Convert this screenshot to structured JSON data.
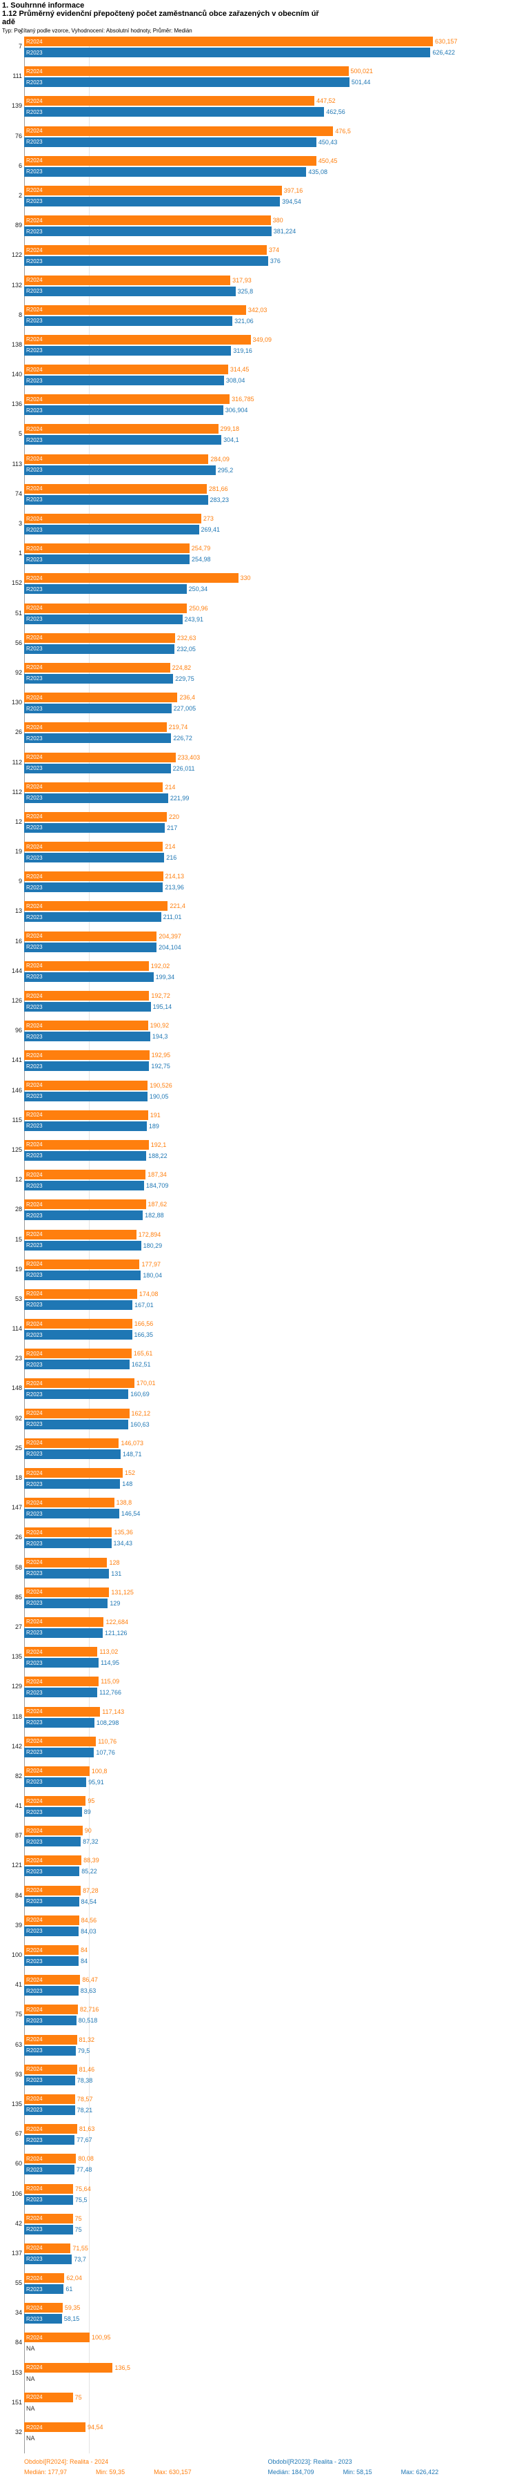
{
  "header": {
    "section_title": "1. Souhrnné informace",
    "subtitle_line1": "1.12 Průměrný evidenční přepočtený počet zaměstnanců obce zařazených v obecním úř",
    "subtitle_line2": "adě",
    "meta": "Typ: Počítaný podle vzorce, Vyhodnocení: Absolutní hodnoty, Průměr: Medián"
  },
  "colors": {
    "r2024": "#ff7f0e",
    "r2023": "#1f77b4"
  },
  "series_labels": {
    "r2024": "R2024",
    "r2023": "R2023"
  },
  "axis": {
    "zero_label": "0",
    "x_min": 0
  },
  "chart_data": {
    "type": "bar",
    "orientation": "horizontal",
    "title": "1.12 Průměrný evidenční přepočtený počet zaměstnanců obce zařazených v obecním úřadě",
    "legend_position": "bottom",
    "series": [
      {
        "key": "r2024",
        "name": "Období[R2024]: Realita - 2024",
        "color": "#ff7f0e"
      },
      {
        "key": "r2023",
        "name": "Období[R2023]: Realita - 2023",
        "color": "#1f77b4"
      }
    ],
    "x_range": [
      0,
      660
    ],
    "rows": [
      {
        "label": "7",
        "v24": 630.157,
        "t24": "630,157",
        "v23": 626.422,
        "t23": "626,422"
      },
      {
        "label": "111",
        "v24": 500.021,
        "t24": "500,021",
        "v23": 501.44,
        "t23": "501,44"
      },
      {
        "label": "139",
        "v24": 447.52,
        "t24": "447,52",
        "v23": 462.56,
        "t23": "462,56"
      },
      {
        "label": "76",
        "v24": 476.5,
        "t24": "476,5",
        "v23": 450.43,
        "t23": "450,43"
      },
      {
        "label": "6",
        "v24": 450.45,
        "t24": "450,45",
        "v23": 435.08,
        "t23": "435,08"
      },
      {
        "label": "2",
        "v24": 397.16,
        "t24": "397,16",
        "v23": 394.54,
        "t23": "394,54"
      },
      {
        "label": "89",
        "v24": 380,
        "t24": "380",
        "v23": 381.224,
        "t23": "381,224"
      },
      {
        "label": "122",
        "v24": 374,
        "t24": "374",
        "v23": 376,
        "t23": "376"
      },
      {
        "label": "132",
        "v24": 317.93,
        "t24": "317,93",
        "v23": 325.8,
        "t23": "325,8"
      },
      {
        "label": "8",
        "v24": 342.03,
        "t24": "342,03",
        "v23": 321.06,
        "t23": "321,06"
      },
      {
        "label": "138",
        "v24": 349.09,
        "t24": "349,09",
        "v23": 319.16,
        "t23": "319,16"
      },
      {
        "label": "140",
        "v24": 314.45,
        "t24": "314,45",
        "v23": 308.04,
        "t23": "308,04"
      },
      {
        "label": "136",
        "v24": 316.785,
        "t24": "316,785",
        "v23": 306.904,
        "t23": "306,904"
      },
      {
        "label": "5",
        "v24": 299.18,
        "t24": "299,18",
        "v23": 304.1,
        "t23": "304,1"
      },
      {
        "label": "113",
        "v24": 284.09,
        "t24": "284,09",
        "v23": 295.2,
        "t23": "295,2"
      },
      {
        "label": "74",
        "v24": 281.66,
        "t24": "281,66",
        "v23": 283.23,
        "t23": "283,23"
      },
      {
        "label": "3",
        "v24": 273,
        "t24": "273",
        "v23": 269.41,
        "t23": "269,41"
      },
      {
        "label": "1",
        "v24": 254.79,
        "t24": "254,79",
        "v23": 254.98,
        "t23": "254,98"
      },
      {
        "label": "152",
        "v24": 330,
        "t24": "330",
        "v23": 250.34,
        "t23": "250,34"
      },
      {
        "label": "51",
        "v24": 250.96,
        "t24": "250,96",
        "v23": 243.91,
        "t23": "243,91"
      },
      {
        "label": "56",
        "v24": 232.63,
        "t24": "232,63",
        "v23": 232.05,
        "t23": "232,05"
      },
      {
        "label": "92",
        "v24": 224.82,
        "t24": "224,82",
        "v23": 229.75,
        "t23": "229,75"
      },
      {
        "label": "130",
        "v24": 236.4,
        "t24": "236,4",
        "v23": 227.005,
        "t23": "227,005"
      },
      {
        "label": "26",
        "v24": 219.74,
        "t24": "219,74",
        "v23": 226.72,
        "t23": "226,72"
      },
      {
        "label": "112",
        "v24": 233.403,
        "t24": "233,403",
        "v23": 226.011,
        "t23": "226,011"
      },
      {
        "label": "112",
        "v24": 214,
        "t24": "214",
        "v23": 221.99,
        "t23": "221,99"
      },
      {
        "label": "12",
        "v24": 220,
        "t24": "220",
        "v23": 217,
        "t23": "217"
      },
      {
        "label": "19",
        "v24": 214,
        "t24": "214",
        "v23": 216,
        "t23": "216"
      },
      {
        "label": "9",
        "v24": 214.13,
        "t24": "214,13",
        "v23": 213.96,
        "t23": "213,96"
      },
      {
        "label": "13",
        "v24": 221.4,
        "t24": "221,4",
        "v23": 211.01,
        "t23": "211,01"
      },
      {
        "label": "16",
        "v24": 204.397,
        "t24": "204,397",
        "v23": 204.104,
        "t23": "204,104"
      },
      {
        "label": "144",
        "v24": 192.02,
        "t24": "192,02",
        "v23": 199.34,
        "t23": "199,34"
      },
      {
        "label": "126",
        "v24": 192.72,
        "t24": "192,72",
        "v23": 195.14,
        "t23": "195,14"
      },
      {
        "label": "96",
        "v24": 190.92,
        "t24": "190,92",
        "v23": 194.3,
        "t23": "194,3"
      },
      {
        "label": "141",
        "v24": 192.95,
        "t24": "192,95",
        "v23": 192.75,
        "t23": "192,75"
      },
      {
        "label": "146",
        "v24": 190.526,
        "t24": "190,526",
        "v23": 190.05,
        "t23": "190,05"
      },
      {
        "label": "115",
        "v24": 191,
        "t24": "191",
        "v23": 189,
        "t23": "189"
      },
      {
        "label": "125",
        "v24": 192.1,
        "t24": "192,1",
        "v23": 188.22,
        "t23": "188,22"
      },
      {
        "label": "12",
        "v24": 187.34,
        "t24": "187,34",
        "v23": 184.709,
        "t23": "184,709"
      },
      {
        "label": "28",
        "v24": 187.62,
        "t24": "187,62",
        "v23": 182.88,
        "t23": "182,88"
      },
      {
        "label": "15",
        "v24": 172.894,
        "t24": "172,894",
        "v23": 180.29,
        "t23": "180,29"
      },
      {
        "label": "19",
        "v24": 177.97,
        "t24": "177,97",
        "v23": 180.04,
        "t23": "180,04"
      },
      {
        "label": "53",
        "v24": 174.08,
        "t24": "174,08",
        "v23": 167.01,
        "t23": "167,01"
      },
      {
        "label": "114",
        "v24": 166.56,
        "t24": "166,56",
        "v23": 166.35,
        "t23": "166,35"
      },
      {
        "label": "23",
        "v24": 165.61,
        "t24": "165,61",
        "v23": 162.51,
        "t23": "162,51"
      },
      {
        "label": "148",
        "v24": 170.01,
        "t24": "170,01",
        "v23": 160.69,
        "t23": "160,69"
      },
      {
        "label": "92",
        "v24": 162.12,
        "t24": "162,12",
        "v23": 160.63,
        "t23": "160,63"
      },
      {
        "label": "25",
        "v24": 146.073,
        "t24": "146,073",
        "v23": 148.71,
        "t23": "148,71"
      },
      {
        "label": "18",
        "v24": 152,
        "t24": "152",
        "v23": 148,
        "t23": "148"
      },
      {
        "label": "147",
        "v24": 138.8,
        "t24": "138,8",
        "v23": 146.54,
        "t23": "146,54"
      },
      {
        "label": "26",
        "v24": 135.36,
        "t24": "135,36",
        "v23": 134.43,
        "t23": "134,43"
      },
      {
        "label": "58",
        "v24": 128,
        "t24": "128",
        "v23": 131,
        "t23": "131"
      },
      {
        "label": "85",
        "v24": 131.125,
        "t24": "131,125",
        "v23": 129,
        "t23": "129"
      },
      {
        "label": "27",
        "v24": 122.684,
        "t24": "122,684",
        "v23": 121.126,
        "t23": "121,126"
      },
      {
        "label": "135",
        "v24": 113.02,
        "t24": "113,02",
        "v23": 114.95,
        "t23": "114,95"
      },
      {
        "label": "129",
        "v24": 115.09,
        "t24": "115,09",
        "v23": 112.766,
        "t23": "112,766"
      },
      {
        "label": "118",
        "v24": 117.143,
        "t24": "117,143",
        "v23": 108.298,
        "t23": "108,298"
      },
      {
        "label": "142",
        "v24": 110.76,
        "t24": "110,76",
        "v23": 107.76,
        "t23": "107,76"
      },
      {
        "label": "82",
        "v24": 100.8,
        "t24": "100,8",
        "v23": 95.91,
        "t23": "95,91"
      },
      {
        "label": "41",
        "v24": 95,
        "t24": "95",
        "v23": 89,
        "t23": "89"
      },
      {
        "label": "87",
        "v24": 90,
        "t24": "90",
        "v23": 87.32,
        "t23": "87,32"
      },
      {
        "label": "121",
        "v24": 88.39,
        "t24": "88,39",
        "v23": 85.22,
        "t23": "85,22"
      },
      {
        "label": "84",
        "v24": 87.28,
        "t24": "87,28",
        "v23": 84.54,
        "t23": "84,54"
      },
      {
        "label": "39",
        "v24": 84.56,
        "t24": "84,56",
        "v23": 84.03,
        "t23": "84,03"
      },
      {
        "label": "100",
        "v24": 84,
        "t24": "84",
        "v23": 84,
        "t23": "84"
      },
      {
        "label": "41",
        "v24": 86.47,
        "t24": "86,47",
        "v23": 83.63,
        "t23": "83,63"
      },
      {
        "label": "75",
        "v24": 82.716,
        "t24": "82,716",
        "v23": 80.518,
        "t23": "80,518"
      },
      {
        "label": "63",
        "v24": 81.32,
        "t24": "81,32",
        "v23": 79.5,
        "t23": "79,5"
      },
      {
        "label": "93",
        "v24": 81.46,
        "t24": "81,46",
        "v23": 78.38,
        "t23": "78,38"
      },
      {
        "label": "135",
        "v24": 78.57,
        "t24": "78,57",
        "v23": 78.21,
        "t23": "78,21"
      },
      {
        "label": "67",
        "v24": 81.63,
        "t24": "81,63",
        "v23": 77.67,
        "t23": "77,67"
      },
      {
        "label": "60",
        "v24": 80.08,
        "t24": "80,08",
        "v23": 77.48,
        "t23": "77,48"
      },
      {
        "label": "106",
        "v24": 75.64,
        "t24": "75,64",
        "v23": 75.5,
        "t23": "75,5"
      },
      {
        "label": "42",
        "v24": 75,
        "t24": "75",
        "v23": 75,
        "t23": "75"
      },
      {
        "label": "137",
        "v24": 71.55,
        "t24": "71,55",
        "v23": 73.7,
        "t23": "73,7"
      },
      {
        "label": "55",
        "v24": 62.04,
        "t24": "62,04",
        "v23": 61,
        "t23": "61"
      },
      {
        "label": "34",
        "v24": 59.35,
        "t24": "59,35",
        "v23": 58.15,
        "t23": "58,15"
      },
      {
        "label": "84",
        "v24": 100.95,
        "t24": "100,95",
        "v23": null,
        "t23": "NA"
      },
      {
        "label": "153",
        "v24": 136.5,
        "t24": "136,5",
        "v23": null,
        "t23": "NA"
      },
      {
        "label": "151",
        "v24": 75,
        "t24": "75",
        "v23": null,
        "t23": "NA"
      },
      {
        "label": "32",
        "v24": 94.54,
        "t24": "94,54",
        "v23": null,
        "t23": "NA"
      }
    ]
  },
  "footer": {
    "legend_2024": {
      "period": "Období[R2024]: Realita - 2024",
      "median": "Medián: 177,97",
      "min": "Min: 59,35",
      "max": "Max: 630,157"
    },
    "legend_2023": {
      "period": "Období[R2023]: Realita - 2023",
      "median": "Medián: 184,709",
      "min": "Min: 58,15",
      "max": "Max: 626,422"
    }
  }
}
